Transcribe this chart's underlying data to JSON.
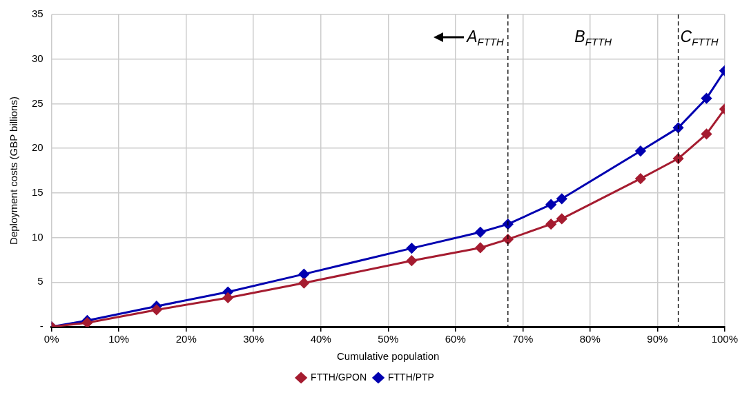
{
  "chart_data": {
    "type": "line",
    "xlabel": "Cumulative population",
    "ylabel": "Deployment costs (GBP billions)",
    "x": [
      0,
      5.3,
      15.6,
      26.2,
      37.5,
      53.5,
      63.7,
      67.8,
      74.2,
      75.8,
      87.5,
      93.1,
      97.3,
      100
    ],
    "series": [
      {
        "name": "FTTH/GPON",
        "color": "#a51c30",
        "values": [
          0,
          0.45,
          1.9,
          3.25,
          4.9,
          7.4,
          8.85,
          9.8,
          11.5,
          12.1,
          16.6,
          18.85,
          21.6,
          24.4
        ]
      },
      {
        "name": "FTTH/PTP",
        "color": "#0000b0",
        "values": [
          0,
          0.7,
          2.3,
          3.9,
          5.9,
          8.8,
          10.6,
          11.5,
          13.7,
          14.35,
          19.7,
          22.3,
          25.6,
          28.7
        ]
      }
    ],
    "xlim": [
      0,
      100
    ],
    "xticks": [
      {
        "value": 0,
        "label": "0%"
      },
      {
        "value": 10,
        "label": "10%"
      },
      {
        "value": 20,
        "label": "20%"
      },
      {
        "value": 30,
        "label": "30%"
      },
      {
        "value": 40,
        "label": "40%"
      },
      {
        "value": 50,
        "label": "50%"
      },
      {
        "value": 60,
        "label": "60%"
      },
      {
        "value": 70,
        "label": "70%"
      },
      {
        "value": 80,
        "label": "80%"
      },
      {
        "value": 90,
        "label": "90%"
      },
      {
        "value": 100,
        "label": "100%"
      }
    ],
    "ylim": [
      0,
      35
    ],
    "yticks": [
      {
        "value": 0,
        "label": "-"
      },
      5,
      10,
      15,
      20,
      25,
      30,
      35
    ],
    "ref_lines": [
      {
        "axis": "x",
        "value": 67.8,
        "line_style": "dashed",
        "color": "#000000"
      },
      {
        "axis": "x",
        "value": 93.1,
        "line_style": "dashed",
        "color": "#000000"
      }
    ],
    "annotations": [
      "A$_{FTTH}$",
      "B$_{FTTH}$",
      "C$_{FTTH}$"
    ],
    "grid": true,
    "legend": "bottom",
    "marker": "diamond",
    "line_style": "solid"
  }
}
